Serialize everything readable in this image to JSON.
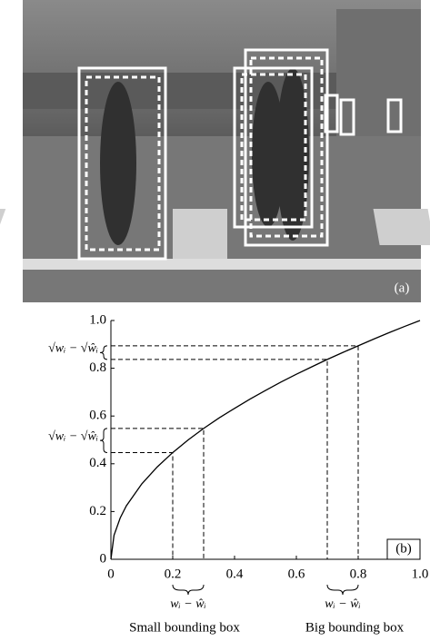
{
  "chart_data": {
    "type": "line",
    "photo_label": "(a)",
    "panel_label": "(b)",
    "x": [
      0,
      0.01,
      0.03,
      0.05,
      0.1,
      0.15,
      0.2,
      0.25,
      0.3,
      0.35,
      0.4,
      0.45,
      0.5,
      0.55,
      0.6,
      0.65,
      0.7,
      0.75,
      0.8,
      0.85,
      0.9,
      0.95,
      1.0
    ],
    "values": [
      0,
      0.1,
      0.173,
      0.224,
      0.316,
      0.387,
      0.447,
      0.5,
      0.548,
      0.592,
      0.632,
      0.671,
      0.707,
      0.742,
      0.775,
      0.806,
      0.837,
      0.866,
      0.894,
      0.922,
      0.949,
      0.975,
      1.0
    ],
    "color": "#000000",
    "xlim": [
      0,
      1.0
    ],
    "ylim": [
      0,
      1.0
    ],
    "xticks": [
      0,
      {
        "value": 0.2,
        "label": "0.2"
      },
      {
        "value": 0.4,
        "label": "0.4"
      },
      {
        "value": 0.6,
        "label": "0.6"
      },
      {
        "value": 0.8,
        "label": "0.8"
      },
      {
        "value": 1.0,
        "label": "1.0"
      }
    ],
    "yticks": [
      0,
      {
        "value": 0.2,
        "label": "0.2"
      },
      {
        "value": 0.4,
        "label": "0.4"
      },
      {
        "value": 0.6,
        "label": "0.6"
      },
      {
        "value": 0.8,
        "label": "0.8"
      },
      {
        "value": 1.0,
        "label": "1.0"
      }
    ],
    "guides": [
      {
        "x": 0.2,
        "y": 0.447
      },
      {
        "x": 0.3,
        "y": 0.548
      },
      {
        "x": 0.7,
        "y": 0.837
      },
      {
        "x": 0.8,
        "y": 0.894
      }
    ],
    "y_brace_labels": [
      "√wᵢ − √ŵᵢ",
      "√wᵢ − √ŵᵢ"
    ],
    "x_brace_labels": [
      "wᵢ − ŵᵢ",
      "wᵢ − ŵᵢ"
    ],
    "x_group_labels": [
      "Small bounding box",
      "Big bounding box"
    ]
  }
}
